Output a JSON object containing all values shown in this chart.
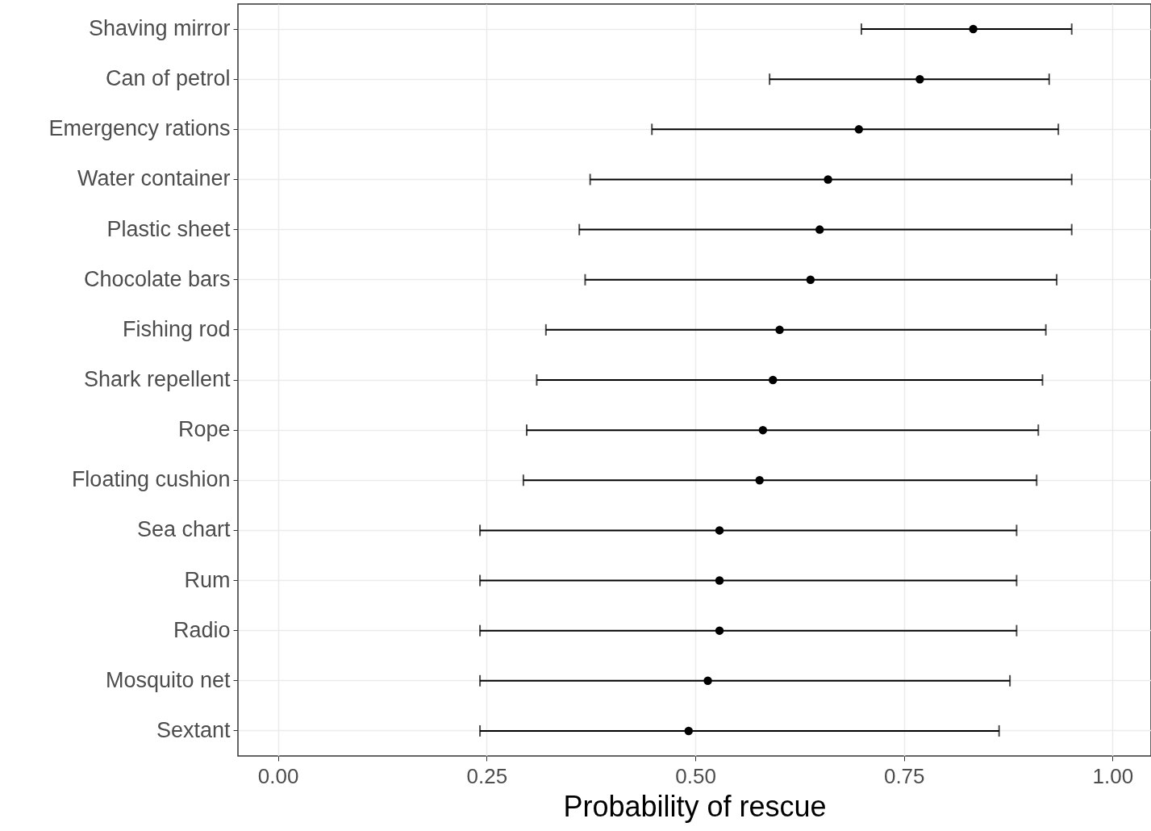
{
  "chart_data": {
    "type": "scatter",
    "orientation": "horizontal",
    "xlabel": "Probability of rescue",
    "categories": [
      "Shaving mirror",
      "Can of petrol",
      "Emergency rations",
      "Water container",
      "Plastic sheet",
      "Chocolate bars",
      "Fishing rod",
      "Shark repellent",
      "Rope",
      "Floating cushion",
      "Sea chart",
      "Rum",
      "Radio",
      "Mosquito net",
      "Sextant"
    ],
    "values": [
      0.833,
      0.769,
      0.696,
      0.659,
      0.649,
      0.638,
      0.601,
      0.593,
      0.581,
      0.577,
      0.529,
      0.529,
      0.529,
      0.515,
      0.492
    ],
    "errors": [
      [
        0.699,
        0.951
      ],
      [
        0.589,
        0.924
      ],
      [
        0.448,
        0.935
      ],
      [
        0.374,
        0.951
      ],
      [
        0.361,
        0.951
      ],
      [
        0.368,
        0.933
      ],
      [
        0.321,
        0.92
      ],
      [
        0.31,
        0.916
      ],
      [
        0.298,
        0.911
      ],
      [
        0.294,
        0.909
      ],
      [
        0.242,
        0.885
      ],
      [
        0.242,
        0.885
      ],
      [
        0.242,
        0.885
      ],
      [
        0.242,
        0.877
      ],
      [
        0.242,
        0.864
      ]
    ],
    "color": "#000000",
    "xlim": [
      -0.048,
      1.046
    ],
    "xticks": [
      {
        "value": 0,
        "label": "0.00"
      },
      {
        "value": 0.25,
        "label": "0.25"
      },
      {
        "value": 0.5,
        "label": "0.50"
      },
      {
        "value": 0.75,
        "label": "0.75"
      },
      {
        "value": 1,
        "label": "1.00"
      }
    ],
    "grid": true,
    "marker": "circle"
  }
}
